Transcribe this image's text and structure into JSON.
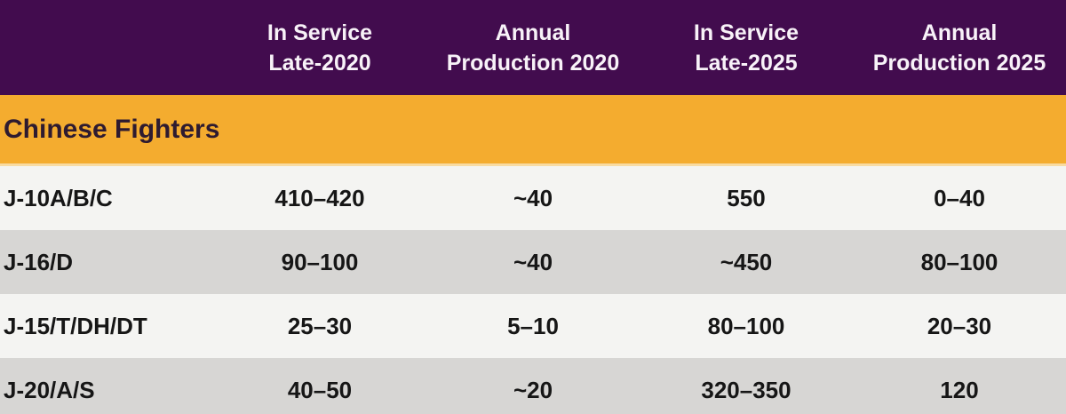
{
  "colors": {
    "header_background": "#420C4E",
    "header_text": "#F8F2F8",
    "section_background": "#F4AC2F",
    "section_border_bottom": "#F8DBA2",
    "section_text": "#2E1B30",
    "row_light": "#F4F4F2",
    "row_dark": "#D7D6D4",
    "data_text": "#161616"
  },
  "table": {
    "headers": [
      {
        "line1": "In Service",
        "line2": "Late-2020"
      },
      {
        "line1": "Annual",
        "line2": "Production 2020"
      },
      {
        "line1": "In Service",
        "line2": "Late-2025"
      },
      {
        "line1": "Annual",
        "line2": "Production 2025"
      }
    ],
    "section": {
      "label": "Chinese Fighters"
    },
    "rows": [
      {
        "name": "J-10A/B/C",
        "values": [
          "410–420",
          "~40",
          "550",
          "0–40"
        ]
      },
      {
        "name": "J-16/D",
        "values": [
          "90–100",
          "~40",
          "~450",
          "80–100"
        ]
      },
      {
        "name": "J-15/T/DH/DT",
        "values": [
          "25–30",
          "5–10",
          "80–100",
          "20–30"
        ]
      },
      {
        "name": "J-20/A/S",
        "values": [
          "40–50",
          "~20",
          "320–350",
          "120"
        ]
      }
    ]
  },
  "chart_data": {
    "type": "table",
    "section": "Chinese Fighters",
    "columns": [
      "",
      "In Service Late-2020",
      "Annual Production 2020",
      "In Service Late-2025",
      "Annual Production 2025"
    ],
    "rows": [
      [
        "J-10A/B/C",
        "410–420",
        "~40",
        "550",
        "0–40"
      ],
      [
        "J-16/D",
        "90–100",
        "~40",
        "~450",
        "80–100"
      ],
      [
        "J-15/T/DH/DT",
        "25–30",
        "5–10",
        "80–100",
        "20–30"
      ],
      [
        "J-20/A/S",
        "40–50",
        "~20",
        "320–350",
        "120"
      ]
    ]
  }
}
